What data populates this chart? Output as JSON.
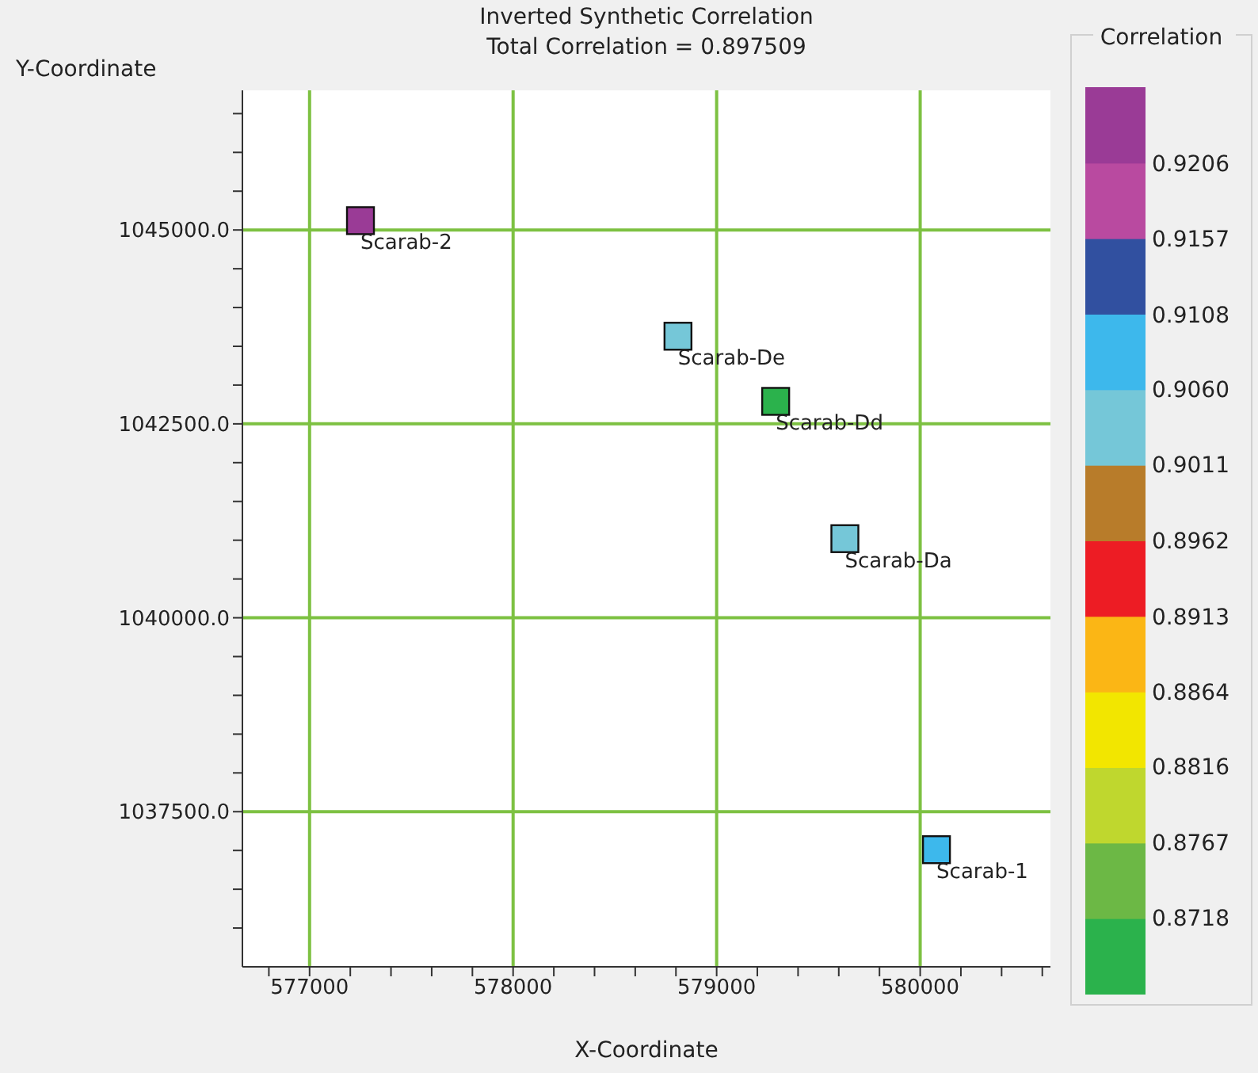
{
  "chart_data": {
    "type": "scatter",
    "title": "Inverted Synthetic Correlation",
    "subtitle": "Total Correlation = 0.897509",
    "xlabel": "X-Coordinate",
    "ylabel": "Y-Coordinate",
    "clabel": "Correlation",
    "marker": "square",
    "grid": true,
    "series": [
      {
        "name": "Scarab-2",
        "x": [
          577250
        ],
        "values": [
          1045120
        ],
        "cvalues": [
          0.923
        ]
      },
      {
        "name": "Scarab-De",
        "x": [
          578810
        ],
        "values": [
          1043630
        ],
        "cvalues": [
          0.9035
        ]
      },
      {
        "name": "Scarab-Dd",
        "x": [
          579290
        ],
        "values": [
          1042790
        ],
        "cvalues": [
          0.869
        ]
      },
      {
        "name": "Scarab-Da",
        "x": [
          579630
        ],
        "values": [
          1041020
        ],
        "cvalues": [
          0.9035
        ]
      },
      {
        "name": "Scarab-1",
        "x": [
          580080
        ],
        "values": [
          1037010
        ],
        "cvalues": [
          0.908
        ]
      }
    ],
    "xlim": [
      576670,
      580640
    ],
    "xticks": [
      {
        "value": 576800,
        "label": null
      },
      577000,
      {
        "value": 577200,
        "label": null
      },
      {
        "value": 577400,
        "label": null
      },
      {
        "value": 577600,
        "label": null
      },
      {
        "value": 577800,
        "label": null
      },
      578000,
      {
        "value": 578200,
        "label": null
      },
      {
        "value": 578400,
        "label": null
      },
      {
        "value": 578600,
        "label": null
      },
      {
        "value": 578800,
        "label": null
      },
      579000,
      {
        "value": 579200,
        "label": null
      },
      {
        "value": 579400,
        "label": null
      },
      {
        "value": 579600,
        "label": null
      },
      {
        "value": 579800,
        "label": null
      },
      580000,
      {
        "value": 580200,
        "label": null
      },
      {
        "value": 580400,
        "label": null
      },
      {
        "value": 580600,
        "label": null
      }
    ],
    "ylim": [
      1035500,
      1046800
    ],
    "yticks": [
      {
        "value": 1036000,
        "label": null
      },
      {
        "value": 1036500,
        "label": null
      },
      {
        "value": 1037000,
        "label": null
      },
      {
        "value": 1037500,
        "label": "1037500.0"
      },
      {
        "value": 1038000,
        "label": null
      },
      {
        "value": 1038500,
        "label": null
      },
      {
        "value": 1039000,
        "label": null
      },
      {
        "value": 1039500,
        "label": null
      },
      {
        "value": 1040000,
        "label": "1040000.0"
      },
      {
        "value": 1040500,
        "label": null
      },
      {
        "value": 1041000,
        "label": null
      },
      {
        "value": 1041500,
        "label": null
      },
      {
        "value": 1042000,
        "label": null
      },
      {
        "value": 1042500,
        "label": "1042500.0"
      },
      {
        "value": 1043000,
        "label": null
      },
      {
        "value": 1043500,
        "label": null
      },
      {
        "value": 1044000,
        "label": null
      },
      {
        "value": 1044500,
        "label": null
      },
      {
        "value": 1045000,
        "label": "1045000.0"
      },
      {
        "value": 1045500,
        "label": null
      },
      {
        "value": 1046000,
        "label": null
      },
      {
        "value": 1046500,
        "label": null
      }
    ],
    "clim": [
      0.8669,
      0.9255
    ],
    "cticks": [
      0.8718,
      0.8767,
      0.8816,
      0.8864,
      0.8913,
      0.8962,
      0.9011,
      {
        "value": 0.906,
        "label": "0.9060"
      },
      {
        "value": 0.9108,
        "label": "0.9108"
      },
      0.9157,
      0.9206
    ]
  }
}
